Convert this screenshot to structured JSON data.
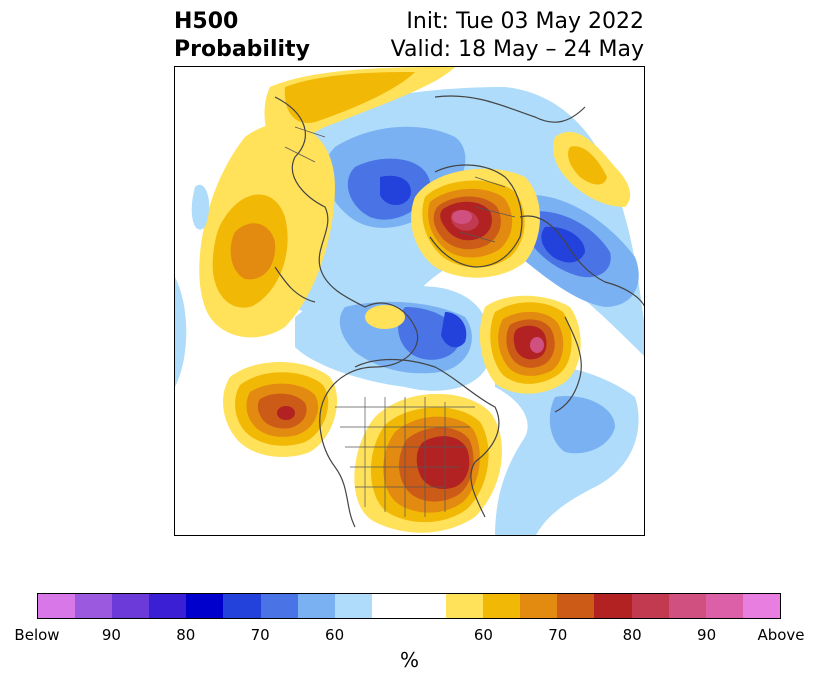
{
  "header": {
    "title_line1": "H500",
    "title_line2": "Probability",
    "init": "Init: Tue 03 May 2022",
    "valid": "Valid: 18 May – 24 May"
  },
  "colorbar": {
    "colors": [
      "#d878e8",
      "#9b59e0",
      "#6c3ad8",
      "#3a1fd4",
      "#0000cc",
      "#2342dc",
      "#4a74e6",
      "#7ab1f2",
      "#aedcfa",
      "#ffffff",
      "#ffe15a",
      "#f2b806",
      "#e38a10",
      "#cc5b18",
      "#b22222",
      "#c23a50",
      "#d05080",
      "#dc60a8",
      "#e87ee0"
    ],
    "tick_labels": [
      "Below",
      "90",
      "80",
      "70",
      "60",
      "60",
      "70",
      "80",
      "90",
      "Above"
    ],
    "unit_label": "%"
  },
  "legend_colors": {
    "below_strong": "#3a1fd4",
    "below_mid": "#4a74e6",
    "below_weak": "#aedcfa",
    "above_weak": "#ffe15a",
    "above_mid": "#e38a10",
    "above_strong": "#b22222",
    "above_peak": "#d05080"
  }
}
